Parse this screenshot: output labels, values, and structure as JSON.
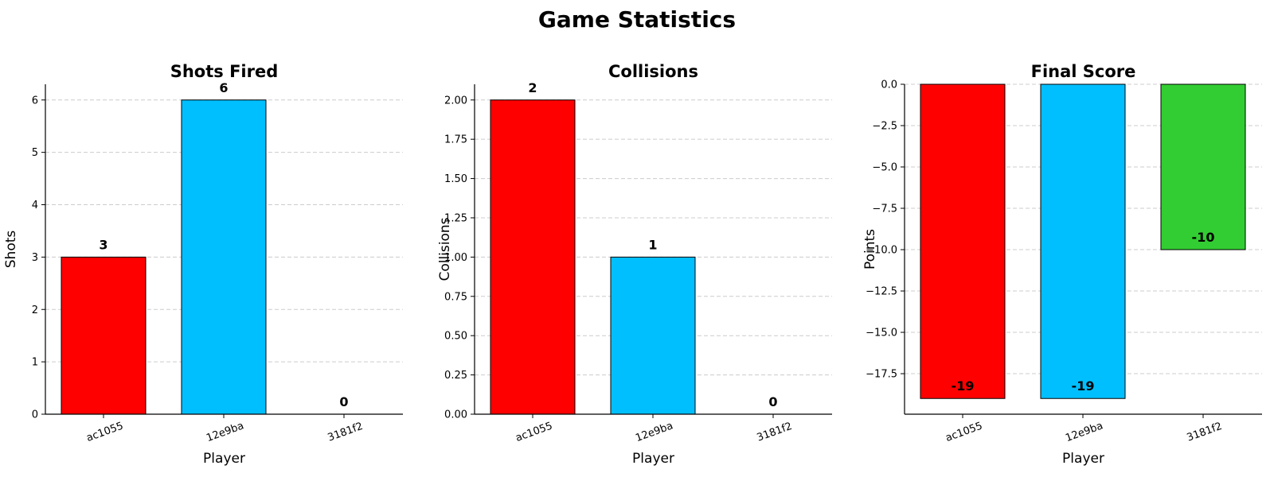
{
  "figure": {
    "title": "Game Statistics"
  },
  "chart_data": [
    {
      "type": "bar",
      "title": "Shots Fired",
      "xlabel": "Player",
      "ylabel": "Shots",
      "categories": [
        "ac1055",
        "12e9ba",
        "3181f2"
      ],
      "values": [
        3,
        6,
        0
      ],
      "value_labels": [
        "3",
        "6",
        "0"
      ],
      "colors": [
        "#ff0000",
        "#00bfff",
        "#32cd32"
      ],
      "ylim": [
        0,
        6.3
      ],
      "yticks": [
        0,
        1,
        2,
        3,
        4,
        5,
        6
      ],
      "ytick_labels": [
        "0",
        "1",
        "2",
        "3",
        "4",
        "5",
        "6"
      ],
      "grid": true,
      "label_position": "above"
    },
    {
      "type": "bar",
      "title": "Collisions",
      "xlabel": "Player",
      "ylabel": "Collisions",
      "categories": [
        "ac1055",
        "12e9ba",
        "3181f2"
      ],
      "values": [
        2,
        1,
        0
      ],
      "value_labels": [
        "2",
        "1",
        "0"
      ],
      "colors": [
        "#ff0000",
        "#00bfff",
        "#32cd32"
      ],
      "ylim": [
        0,
        2.1
      ],
      "yticks": [
        0,
        0.25,
        0.5,
        0.75,
        1,
        1.25,
        1.5,
        1.75,
        2
      ],
      "ytick_labels": [
        "0.00",
        "0.25",
        "0.50",
        "0.75",
        "1.00",
        "1.25",
        "1.50",
        "1.75",
        "2.00"
      ],
      "grid": true,
      "label_position": "above"
    },
    {
      "type": "bar",
      "title": "Final Score",
      "xlabel": "Player",
      "ylabel": "Points",
      "categories": [
        "ac1055",
        "12e9ba",
        "3181f2"
      ],
      "values": [
        -19,
        -19,
        -10
      ],
      "value_labels": [
        "-19",
        "-19",
        "-10"
      ],
      "colors": [
        "#ff0000",
        "#00bfff",
        "#32cd32"
      ],
      "ylim": [
        -19.95,
        0
      ],
      "yticks": [
        0,
        -2.5,
        -5,
        -7.5,
        -10,
        -12.5,
        -15,
        -17.5
      ],
      "ytick_labels": [
        "0.0",
        "−2.5",
        "−5.0",
        "−7.5",
        "−10.0",
        "−12.5",
        "−15.0",
        "−17.5"
      ],
      "grid": true,
      "label_position": "inside-bottom"
    }
  ]
}
